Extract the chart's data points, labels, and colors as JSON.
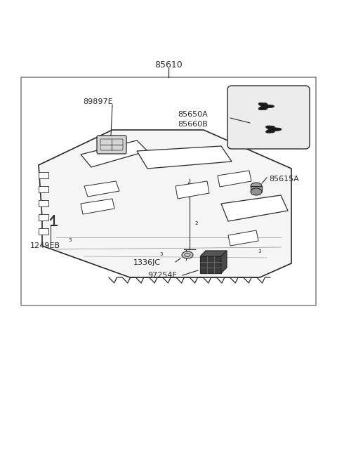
{
  "bg_color": "#ffffff",
  "border_color": "#888888",
  "line_color": "#2a2a2a",
  "fig_width": 4.8,
  "fig_height": 6.55,
  "dpi": 100,
  "title": "85610",
  "labels": [
    "89897E",
    "85650A",
    "85660B",
    "85615A",
    "1249EB",
    "1336JC",
    "97254F"
  ]
}
